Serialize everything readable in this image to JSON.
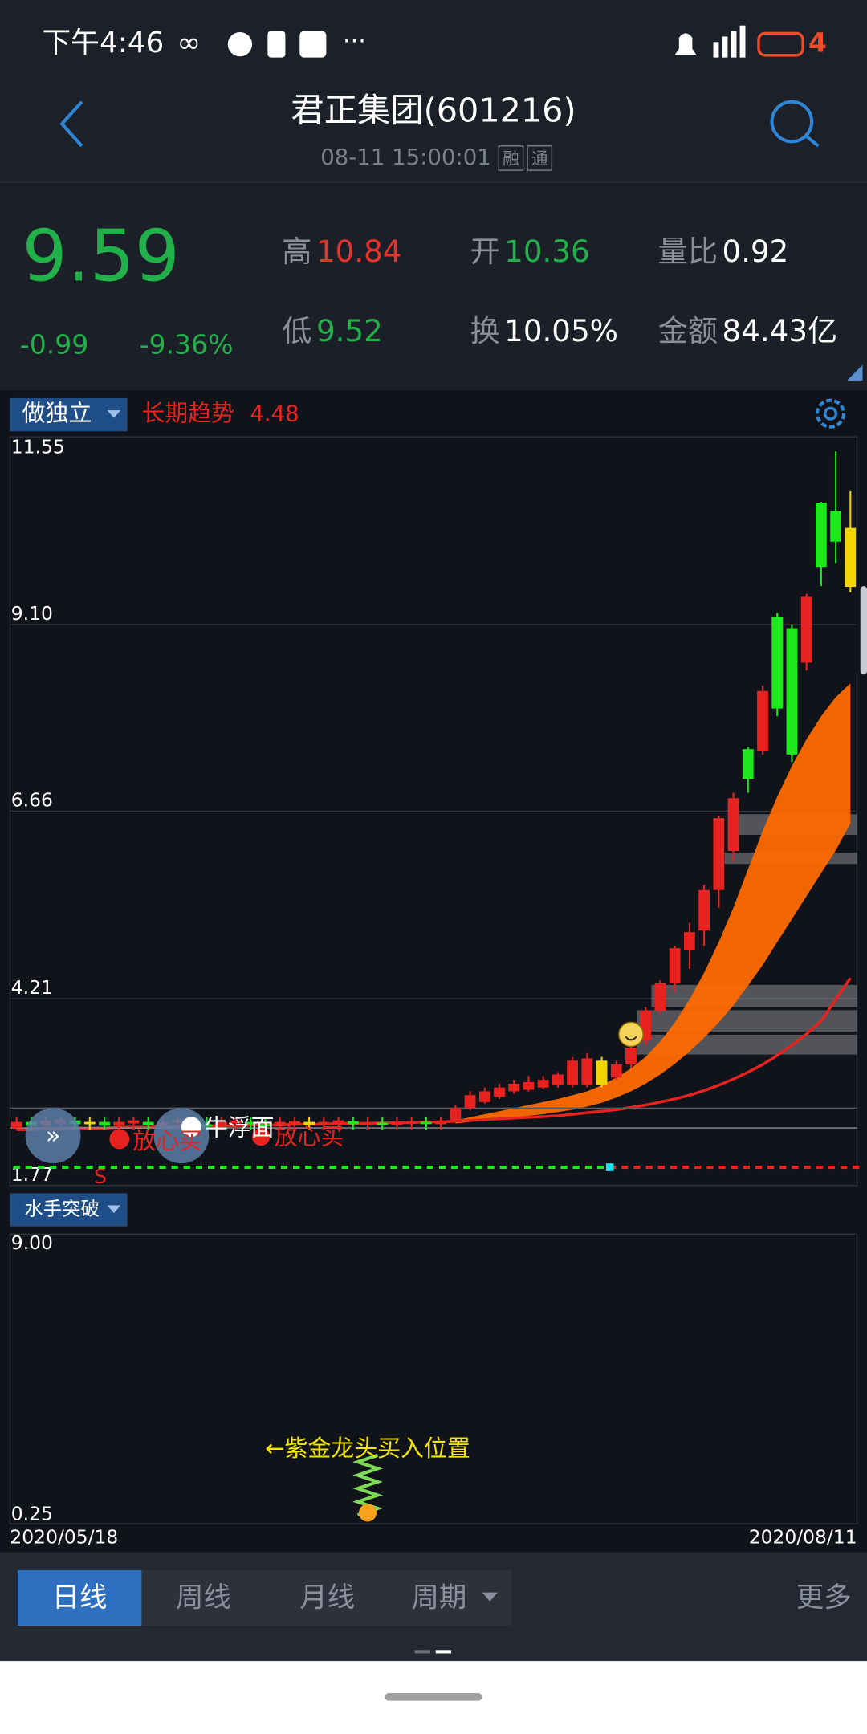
{
  "status_bar": {
    "time": "下午4:46",
    "battery": "4"
  },
  "header": {
    "title": "君正集团(601216)",
    "timestamp": "08-11 15:00:01",
    "badges": [
      "融",
      "通"
    ]
  },
  "quote": {
    "price": "9.59",
    "change": "-0.99",
    "change_pct": "-9.36%",
    "stats": [
      {
        "label": "高",
        "value": "10.84"
      },
      {
        "label": "开",
        "value": "10.36"
      },
      {
        "label": "量比",
        "value": "0.92"
      },
      {
        "label": "低",
        "value": "9.52"
      },
      {
        "label": "换",
        "value": "10.05%"
      },
      {
        "label": "金额",
        "value": "84.43亿"
      }
    ]
  },
  "chart_data": [
    {
      "type": "candlestick",
      "indicator": "做独立",
      "trend_label": "长期趋势",
      "trend_value": "4.48",
      "ylim": [
        1.77,
        11.55
      ],
      "yticks": [
        1.77,
        4.21,
        6.66,
        {
          "value": 9.1,
          "label": "9.10"
        },
        11.55
      ],
      "categories": [
        "2020/05/18",
        null,
        null,
        null,
        null,
        null,
        null,
        null,
        null,
        null,
        null,
        null,
        null,
        null,
        null,
        null,
        null,
        null,
        null,
        null,
        null,
        null,
        null,
        null,
        null,
        null,
        null,
        null,
        null,
        null,
        null,
        null,
        null,
        null,
        null,
        null,
        null,
        null,
        null,
        null,
        null,
        null,
        null,
        null,
        null,
        null,
        null,
        null,
        null,
        null,
        null,
        null,
        null,
        null,
        null,
        null,
        null,
        "2020/08/11"
      ],
      "open": [
        2.52,
        2.6,
        2.55,
        2.58,
        2.62,
        2.57,
        2.6,
        2.55,
        2.58,
        2.6,
        2.56,
        2.59,
        2.61,
        2.57,
        2.55,
        2.58,
        2.6,
        2.57,
        2.55,
        2.58,
        2.6,
        2.56,
        2.58,
        2.61,
        2.57,
        2.59,
        2.56,
        2.58,
        2.6,
        2.57,
        2.62,
        2.78,
        2.86,
        2.93,
        3.0,
        3.02,
        3.05,
        3.08,
        3.08,
        3.08,
        3.08,
        3.18,
        3.35,
        3.66,
        4.05,
        4.41,
        4.84,
        5.1,
        5.63,
        6.14,
        7.47,
        7.44,
        9.2,
        9.05,
        8.6,
        10.69,
        10.58,
        10.36
      ],
      "close": [
        2.6,
        2.55,
        2.62,
        2.63,
        2.57,
        2.6,
        2.55,
        2.6,
        2.62,
        2.56,
        2.6,
        2.63,
        2.57,
        2.55,
        2.6,
        2.62,
        2.57,
        2.55,
        2.6,
        2.61,
        2.56,
        2.6,
        2.62,
        2.57,
        2.6,
        2.56,
        2.59,
        2.61,
        2.58,
        2.62,
        2.78,
        2.95,
        3.0,
        3.05,
        3.1,
        3.12,
        3.15,
        3.22,
        3.4,
        3.43,
        3.4,
        3.35,
        3.57,
        4.05,
        4.41,
        4.87,
        5.08,
        5.63,
        6.57,
        6.83,
        7.08,
        8.23,
        8.0,
        7.4,
        9.46,
        9.85,
        10.18,
        9.59
      ],
      "high": [
        2.66,
        2.66,
        2.66,
        2.66,
        2.66,
        2.66,
        2.66,
        2.66,
        2.66,
        2.66,
        2.66,
        2.66,
        2.66,
        2.66,
        2.66,
        2.66,
        2.66,
        2.66,
        2.66,
        2.66,
        2.66,
        2.66,
        2.66,
        2.66,
        2.66,
        2.66,
        2.66,
        2.66,
        2.66,
        2.66,
        2.82,
        3.0,
        3.05,
        3.1,
        3.15,
        3.2,
        3.2,
        3.25,
        3.45,
        3.5,
        3.45,
        3.4,
        3.6,
        4.1,
        4.45,
        4.9,
        5.2,
        5.7,
        6.6,
        6.9,
        7.5,
        8.3,
        9.25,
        9.1,
        9.5,
        10.7,
        11.36,
        10.84
      ],
      "low": [
        2.5,
        2.5,
        2.5,
        2.5,
        2.5,
        2.5,
        2.5,
        2.5,
        2.5,
        2.5,
        2.5,
        2.5,
        2.5,
        2.5,
        2.5,
        2.5,
        2.5,
        2.5,
        2.5,
        2.5,
        2.5,
        2.5,
        2.5,
        2.5,
        2.5,
        2.5,
        2.5,
        2.5,
        2.5,
        2.5,
        2.6,
        2.75,
        2.84,
        2.9,
        2.97,
        3.0,
        3.03,
        3.05,
        3.05,
        3.05,
        3.05,
        3.15,
        3.3,
        3.6,
        4.0,
        4.3,
        4.6,
        4.9,
        5.4,
        6.0,
        6.9,
        7.4,
        7.9,
        7.3,
        8.5,
        9.6,
        9.9,
        9.52
      ],
      "colors": [
        "#e8231f",
        "#1ee81e",
        "#e8231f",
        "#e8231f",
        "#1ee81e",
        "#f5d500",
        "#1ee81e",
        "#e8231f",
        "#e8231f",
        "#1ee81e",
        "#e8231f",
        "#e8231f",
        "#1ee81e",
        "#1ee81e",
        "#e8231f",
        "#e8231f",
        "#1ee81e",
        "#1ee81e",
        "#e8231f",
        "#e8231f",
        "#f5d500",
        "#e8231f",
        "#e8231f",
        "#1ee81e",
        "#e8231f",
        "#1ee81e",
        "#e8231f",
        "#e8231f",
        "#1ee81e",
        "#e8231f",
        "#e8231f",
        "#e8231f",
        "#e8231f",
        "#e8231f",
        "#e8231f",
        "#e8231f",
        "#e8231f",
        "#e8231f",
        "#e8231f",
        "#e8231f",
        "#f5d500",
        "#e8231f",
        "#e8231f",
        "#e8231f",
        "#e8231f",
        "#e8231f",
        "#e8231f",
        "#e8231f",
        "#e8231f",
        "#e8231f",
        "#1ee81e",
        "#e8231f",
        "#1ee81e",
        "#1ee81e",
        "#e8231f",
        "#1ee81e",
        "#1ee81e",
        "#f5d500"
      ],
      "band_upper": [
        null,
        null,
        null,
        null,
        null,
        null,
        null,
        null,
        null,
        null,
        null,
        null,
        null,
        null,
        null,
        null,
        null,
        null,
        null,
        null,
        null,
        null,
        null,
        null,
        null,
        null,
        null,
        null,
        null,
        null,
        2.62,
        2.66,
        2.7,
        2.74,
        2.78,
        2.82,
        2.86,
        2.9,
        2.95,
        3.0,
        3.08,
        3.18,
        3.3,
        3.45,
        3.65,
        3.9,
        4.2,
        4.55,
        4.95,
        5.4,
        5.9,
        6.4,
        6.85,
        7.25,
        7.6,
        7.9,
        8.15,
        8.33
      ],
      "band_lower": [
        null,
        null,
        null,
        null,
        null,
        null,
        null,
        null,
        null,
        null,
        null,
        null,
        null,
        null,
        null,
        null,
        null,
        null,
        null,
        null,
        null,
        null,
        null,
        null,
        null,
        null,
        null,
        null,
        null,
        null,
        2.58,
        2.6,
        2.62,
        2.64,
        2.66,
        2.68,
        2.7,
        2.73,
        2.76,
        2.8,
        2.85,
        2.92,
        3.0,
        3.1,
        3.22,
        3.36,
        3.52,
        3.7,
        3.9,
        4.12,
        4.38,
        4.65,
        4.95,
        5.25,
        5.55,
        5.85,
        6.15,
        6.5
      ],
      "band_color": "#ff6a00",
      "ma": [
        2.5,
        2.5,
        2.51,
        2.51,
        2.52,
        2.52,
        2.52,
        2.53,
        2.53,
        2.53,
        2.54,
        2.54,
        2.54,
        2.55,
        2.55,
        2.55,
        2.56,
        2.56,
        2.56,
        2.57,
        2.57,
        2.57,
        2.58,
        2.58,
        2.58,
        2.59,
        2.59,
        2.59,
        2.6,
        2.6,
        2.61,
        2.62,
        2.63,
        2.64,
        2.65,
        2.66,
        2.67,
        2.68,
        2.7,
        2.72,
        2.74,
        2.76,
        2.79,
        2.82,
        2.86,
        2.9,
        2.95,
        3.01,
        3.08,
        3.16,
        3.25,
        3.35,
        3.47,
        3.6,
        3.75,
        3.92,
        4.2,
        4.48
      ],
      "ma_color": "#e8231f",
      "zones": [
        {
          "start": 50,
          "low": 6.35,
          "high": 6.62
        },
        {
          "start": 49,
          "low": 5.97,
          "high": 6.12
        },
        {
          "start": 44,
          "low": 4.1,
          "high": 4.39
        },
        {
          "start": 43,
          "low": 3.78,
          "high": 4.06
        },
        {
          "start": 43,
          "low": 3.48,
          "high": 3.74
        }
      ],
      "annotations": [
        "牛浮面",
        "放心买",
        "放心买",
        "S"
      ]
    },
    {
      "type": "signal",
      "indicator": "水手突破",
      "ylim": [
        0.25,
        9
      ],
      "yticks": [
        0.25,
        {
          "value": 9,
          "label": "9.00"
        }
      ],
      "signal_index": 24,
      "signal_value": 2.5,
      "annotation": "←紫金龙头买入位置"
    }
  ],
  "tabs": [
    "日线",
    "周线",
    "月线",
    "周期",
    "更多"
  ]
}
